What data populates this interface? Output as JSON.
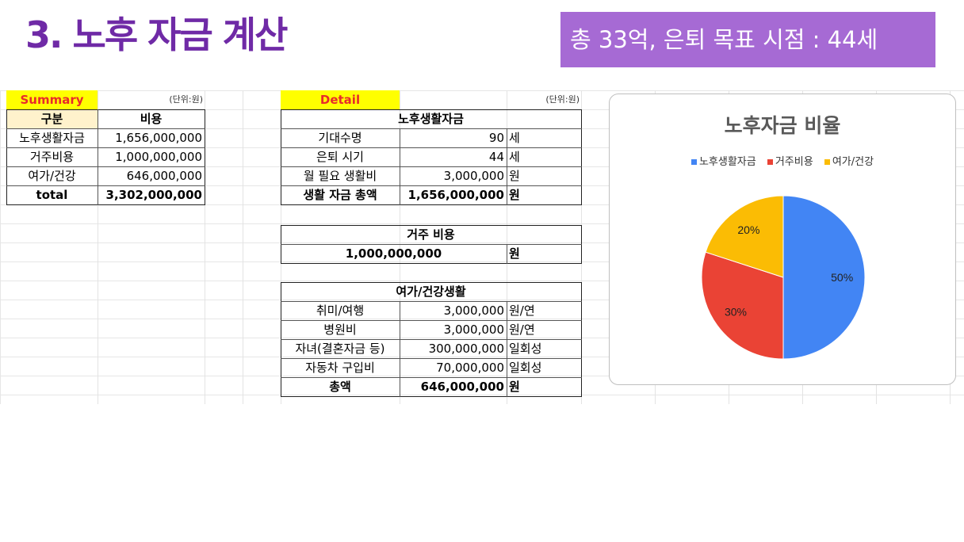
{
  "page": {
    "title": "3. 노후 자금 계산",
    "banner": "총 33억, 은퇴 목표 시점 : 44세"
  },
  "summary": {
    "label": "Summary",
    "unit_note": "(단위:원)",
    "headers": [
      "구분",
      "비용"
    ],
    "rows": [
      {
        "name": "노후생활자금",
        "value": "1,656,000,000"
      },
      {
        "name": "거주비용",
        "value": "1,000,000,000"
      },
      {
        "name": "여가/건강",
        "value": "646,000,000"
      },
      {
        "name": "total",
        "value": "3,302,000,000"
      }
    ]
  },
  "detail": {
    "label": "Detail",
    "unit_note": "(단위:원)",
    "living": {
      "title": "노후생활자금",
      "rows": [
        {
          "name": "기대수명",
          "value": "90",
          "unit": "세"
        },
        {
          "name": "은퇴 시기",
          "value": "44",
          "unit": "세"
        },
        {
          "name": "월 필요 생활비",
          "value": "3,000,000",
          "unit": "원"
        },
        {
          "name": "생활 자금 총액",
          "value": "1,656,000,000",
          "unit": "원"
        }
      ]
    },
    "housing": {
      "title": "거주 비용",
      "value": "1,000,000,000",
      "unit": "원"
    },
    "leisure": {
      "title": "여가/건강생활",
      "rows": [
        {
          "name": "취미/여행",
          "value": "3,000,000",
          "unit": "원/연"
        },
        {
          "name": "병원비",
          "value": "3,000,000",
          "unit": "원/연"
        },
        {
          "name": "자녀(결혼자금 등)",
          "value": "300,000,000",
          "unit": "일회성"
        },
        {
          "name": "자동차 구입비",
          "value": "70,000,000",
          "unit": "일회성"
        },
        {
          "name": "총액",
          "value": "646,000,000",
          "unit": "원"
        }
      ]
    }
  },
  "chart_data": {
    "type": "pie",
    "title": "노후자금 비율",
    "categories": [
      "노후생활자금",
      "거주비용",
      "여가/건강"
    ],
    "values": [
      50,
      30,
      20
    ],
    "labels": [
      "50%",
      "30%",
      "20%"
    ],
    "colors": [
      "#4285f4",
      "#ea4335",
      "#fbbc04"
    ],
    "legend_position": "top"
  }
}
